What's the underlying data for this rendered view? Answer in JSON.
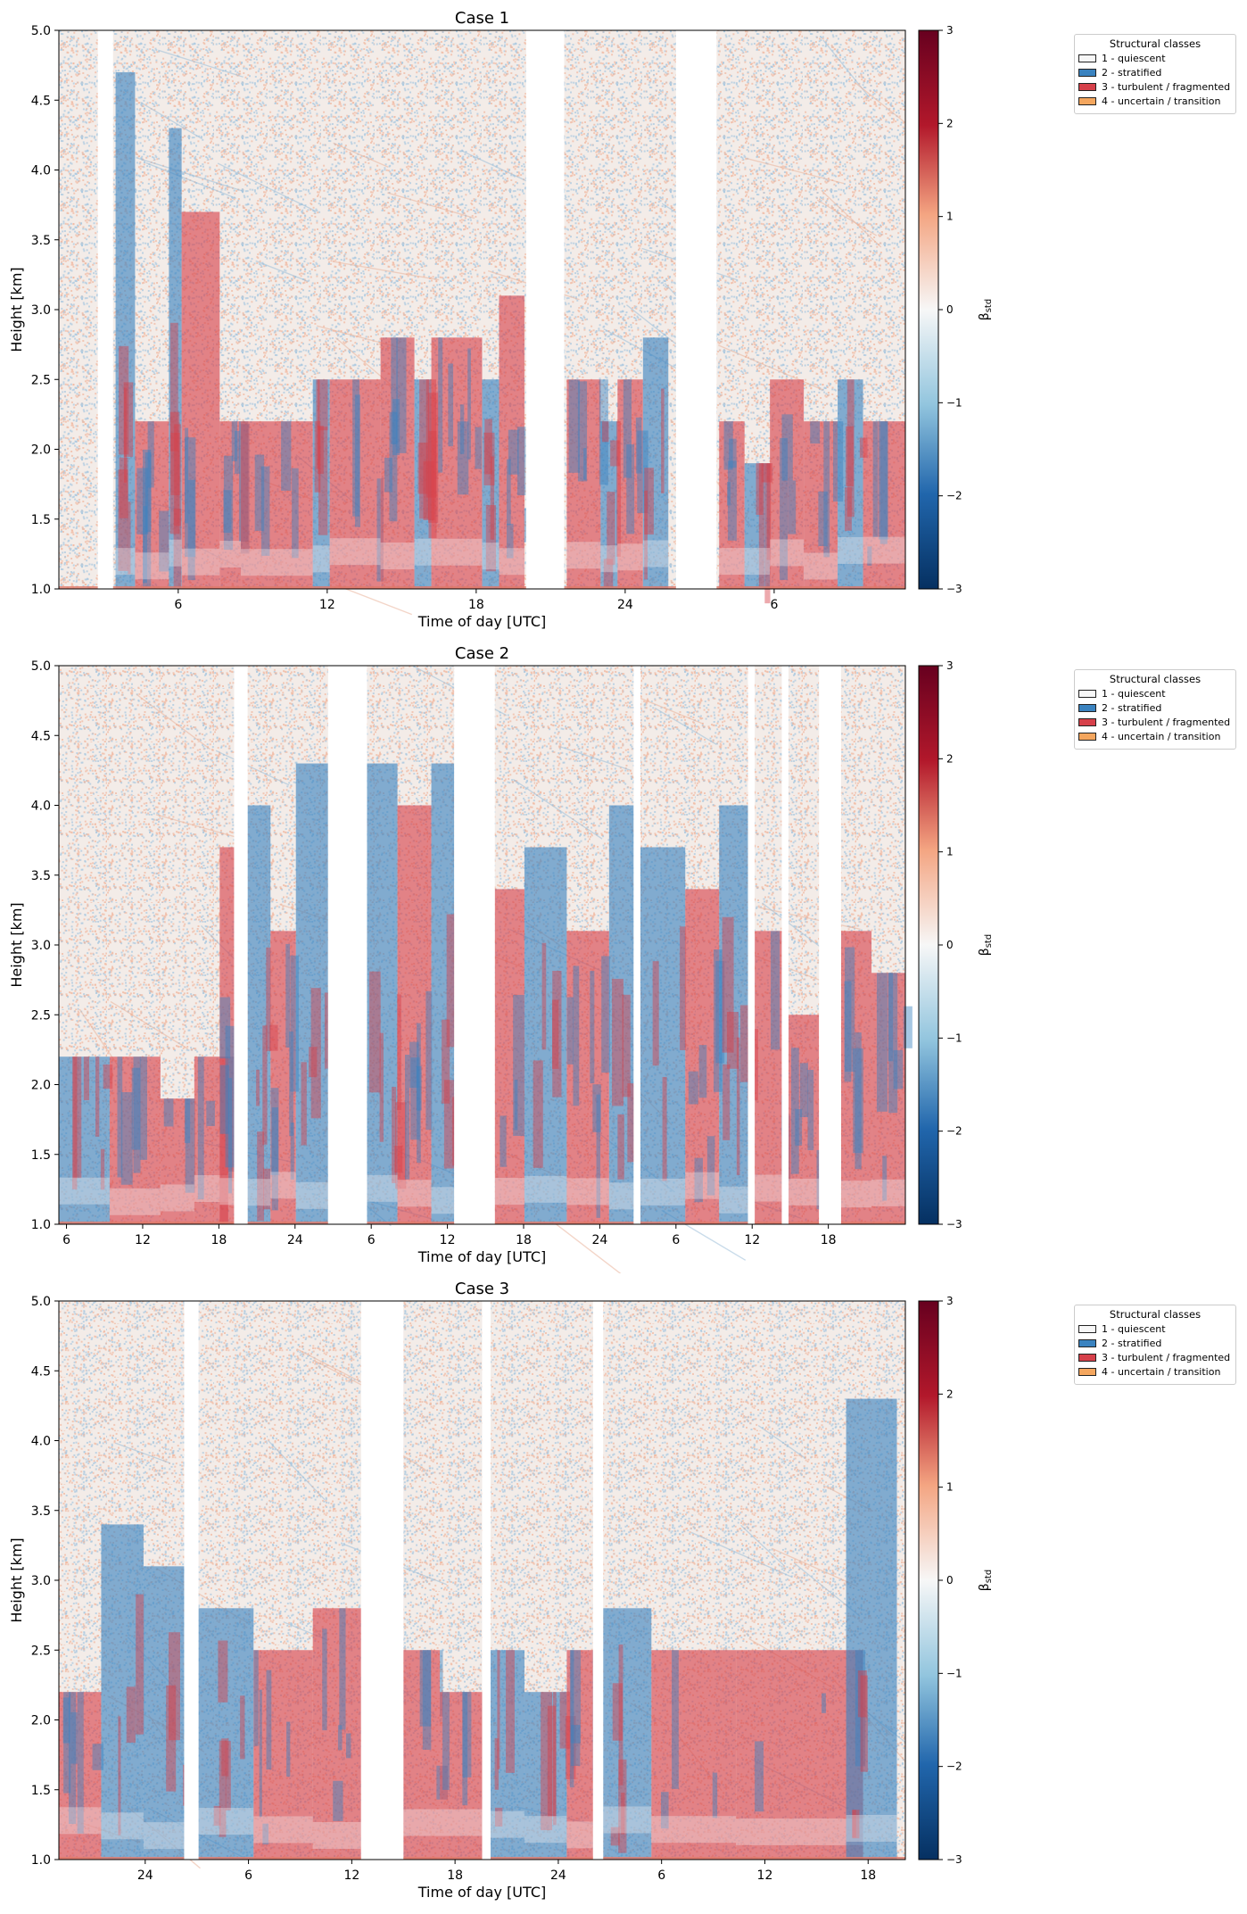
{
  "chart_data": [
    {
      "type": "heatmap",
      "title": "Case 1",
      "xlabel": "Time of day [UTC]",
      "ylabel": "Height [km]",
      "ylim": [
        1.0,
        5.0
      ],
      "y_ticks": [
        "1.0",
        "1.5",
        "2.0",
        "2.5",
        "3.0",
        "3.5",
        "4.0",
        "4.5",
        "5.0"
      ],
      "x_ticks": [
        "6",
        "12",
        "18",
        "24",
        "6"
      ],
      "x_tick_fracs": [
        0.141,
        0.317,
        0.493,
        0.669,
        0.845
      ],
      "colorbar_label": "β_std",
      "colorbar_ticks": [
        "−3",
        "−2",
        "−1",
        "0",
        "1",
        "2",
        "3"
      ],
      "colorbar_range": [
        -3,
        3
      ],
      "gaps": [
        [
          0.046,
          0.064
        ],
        [
          0.552,
          0.597
        ],
        [
          0.729,
          0.777
        ]
      ],
      "classes": [
        {
          "start": 0.067,
          "end": 0.09,
          "class": 2,
          "top": 4.7
        },
        {
          "start": 0.09,
          "end": 0.13,
          "class": 3,
          "top": 2.2
        },
        {
          "start": 0.13,
          "end": 0.145,
          "class": 2,
          "top": 4.3
        },
        {
          "start": 0.145,
          "end": 0.19,
          "class": 3,
          "top": 3.7
        },
        {
          "start": 0.19,
          "end": 0.215,
          "class": 3,
          "top": 2.2
        },
        {
          "start": 0.215,
          "end": 0.3,
          "class": 3,
          "top": 2.2
        },
        {
          "start": 0.3,
          "end": 0.32,
          "class": 2,
          "top": 2.5
        },
        {
          "start": 0.32,
          "end": 0.38,
          "class": 3,
          "top": 2.5
        },
        {
          "start": 0.38,
          "end": 0.42,
          "class": 3,
          "top": 2.8
        },
        {
          "start": 0.42,
          "end": 0.44,
          "class": 2,
          "top": 2.5
        },
        {
          "start": 0.44,
          "end": 0.5,
          "class": 3,
          "top": 2.8
        },
        {
          "start": 0.5,
          "end": 0.52,
          "class": 2,
          "top": 2.5
        },
        {
          "start": 0.52,
          "end": 0.55,
          "class": 3,
          "top": 3.1
        },
        {
          "start": 0.6,
          "end": 0.64,
          "class": 3,
          "top": 2.5
        },
        {
          "start": 0.64,
          "end": 0.66,
          "class": 2,
          "top": 2.2
        },
        {
          "start": 0.66,
          "end": 0.69,
          "class": 3,
          "top": 2.5
        },
        {
          "start": 0.69,
          "end": 0.72,
          "class": 2,
          "top": 2.8
        },
        {
          "start": 0.78,
          "end": 0.81,
          "class": 3,
          "top": 2.2
        },
        {
          "start": 0.81,
          "end": 0.84,
          "class": 2,
          "top": 1.9
        },
        {
          "start": 0.84,
          "end": 0.88,
          "class": 3,
          "top": 2.5
        },
        {
          "start": 0.88,
          "end": 0.92,
          "class": 3,
          "top": 2.2
        },
        {
          "start": 0.92,
          "end": 0.95,
          "class": 2,
          "top": 2.5
        },
        {
          "start": 0.95,
          "end": 1.0,
          "class": 3,
          "top": 2.2
        }
      ]
    },
    {
      "type": "heatmap",
      "title": "Case 2",
      "xlabel": "Time of day [UTC]",
      "ylabel": "Height [km]",
      "ylim": [
        1.0,
        5.0
      ],
      "y_ticks": [
        "1.0",
        "1.5",
        "2.0",
        "2.5",
        "3.0",
        "3.5",
        "4.0",
        "4.5",
        "5.0"
      ],
      "x_ticks": [
        "6",
        "12",
        "18",
        "24",
        "6",
        "12",
        "18",
        "24",
        "6",
        "12",
        "18"
      ],
      "x_tick_fracs": [
        0.009,
        0.099,
        0.189,
        0.279,
        0.369,
        0.459,
        0.549,
        0.639,
        0.729,
        0.819,
        0.909
      ],
      "colorbar_label": "β_std",
      "colorbar_ticks": [
        "−3",
        "−2",
        "−1",
        "0",
        "1",
        "2",
        "3"
      ],
      "colorbar_range": [
        -3,
        3
      ],
      "gaps": [
        [
          0.207,
          0.223
        ],
        [
          0.318,
          0.364
        ],
        [
          0.467,
          0.515
        ],
        [
          0.679,
          0.687
        ],
        [
          0.814,
          0.822
        ],
        [
          0.854,
          0.862
        ],
        [
          0.898,
          0.924
        ]
      ],
      "classes": [
        {
          "start": 0.0,
          "end": 0.06,
          "class": 2,
          "top": 2.2
        },
        {
          "start": 0.06,
          "end": 0.12,
          "class": 3,
          "top": 2.2
        },
        {
          "start": 0.12,
          "end": 0.16,
          "class": 3,
          "top": 1.9
        },
        {
          "start": 0.16,
          "end": 0.2,
          "class": 3,
          "top": 2.2
        },
        {
          "start": 0.19,
          "end": 0.207,
          "class": 3,
          "top": 3.7
        },
        {
          "start": 0.223,
          "end": 0.25,
          "class": 2,
          "top": 4.0
        },
        {
          "start": 0.25,
          "end": 0.28,
          "class": 3,
          "top": 3.1
        },
        {
          "start": 0.28,
          "end": 0.318,
          "class": 2,
          "top": 4.3
        },
        {
          "start": 0.364,
          "end": 0.4,
          "class": 2,
          "top": 4.3
        },
        {
          "start": 0.4,
          "end": 0.44,
          "class": 3,
          "top": 4.0
        },
        {
          "start": 0.44,
          "end": 0.467,
          "class": 2,
          "top": 4.3
        },
        {
          "start": 0.515,
          "end": 0.55,
          "class": 3,
          "top": 3.4
        },
        {
          "start": 0.55,
          "end": 0.6,
          "class": 2,
          "top": 3.7
        },
        {
          "start": 0.6,
          "end": 0.65,
          "class": 3,
          "top": 3.1
        },
        {
          "start": 0.65,
          "end": 0.679,
          "class": 2,
          "top": 4.0
        },
        {
          "start": 0.687,
          "end": 0.74,
          "class": 2,
          "top": 3.7
        },
        {
          "start": 0.74,
          "end": 0.78,
          "class": 3,
          "top": 3.4
        },
        {
          "start": 0.78,
          "end": 0.814,
          "class": 2,
          "top": 4.0
        },
        {
          "start": 0.822,
          "end": 0.854,
          "class": 3,
          "top": 3.1
        },
        {
          "start": 0.862,
          "end": 0.898,
          "class": 3,
          "top": 2.5
        },
        {
          "start": 0.924,
          "end": 0.96,
          "class": 3,
          "top": 3.1
        },
        {
          "start": 0.96,
          "end": 1.0,
          "class": 3,
          "top": 2.8
        }
      ]
    },
    {
      "type": "heatmap",
      "title": "Case 3",
      "xlabel": "Time of day [UTC]",
      "ylabel": "Height [km]",
      "ylim": [
        1.0,
        5.0
      ],
      "y_ticks": [
        "1.0",
        "1.5",
        "2.0",
        "2.5",
        "3.0",
        "3.5",
        "4.0",
        "4.5",
        "5.0"
      ],
      "x_ticks": [
        "24",
        "6",
        "12",
        "18",
        "24",
        "6",
        "12",
        "18"
      ],
      "x_tick_fracs": [
        0.102,
        0.224,
        0.346,
        0.468,
        0.59,
        0.712,
        0.834,
        0.956
      ],
      "colorbar_label": "β_std",
      "colorbar_ticks": [
        "−3",
        "−2",
        "−1",
        "0",
        "1",
        "2",
        "3"
      ],
      "colorbar_range": [
        -3,
        3
      ],
      "gaps": [
        [
          0.148,
          0.165
        ],
        [
          0.357,
          0.407
        ],
        [
          0.5,
          0.51
        ],
        [
          0.631,
          0.643
        ]
      ],
      "classes": [
        {
          "start": 0.0,
          "end": 0.05,
          "class": 3,
          "top": 2.2
        },
        {
          "start": 0.05,
          "end": 0.1,
          "class": 2,
          "top": 3.4
        },
        {
          "start": 0.1,
          "end": 0.148,
          "class": 2,
          "top": 3.1
        },
        {
          "start": 0.165,
          "end": 0.23,
          "class": 2,
          "top": 2.8
        },
        {
          "start": 0.23,
          "end": 0.3,
          "class": 3,
          "top": 2.5
        },
        {
          "start": 0.3,
          "end": 0.357,
          "class": 3,
          "top": 2.8
        },
        {
          "start": 0.407,
          "end": 0.45,
          "class": 3,
          "top": 2.5
        },
        {
          "start": 0.45,
          "end": 0.5,
          "class": 3,
          "top": 2.2
        },
        {
          "start": 0.51,
          "end": 0.55,
          "class": 2,
          "top": 2.5
        },
        {
          "start": 0.55,
          "end": 0.6,
          "class": 2,
          "top": 2.2
        },
        {
          "start": 0.6,
          "end": 0.631,
          "class": 3,
          "top": 2.5
        },
        {
          "start": 0.643,
          "end": 0.7,
          "class": 2,
          "top": 2.8
        },
        {
          "start": 0.7,
          "end": 0.8,
          "class": 3,
          "top": 2.5
        },
        {
          "start": 0.8,
          "end": 0.95,
          "class": 3,
          "top": 2.5
        },
        {
          "start": 0.93,
          "end": 0.99,
          "class": 2,
          "top": 4.3
        }
      ]
    }
  ],
  "legend": {
    "title": "Structural classes",
    "items": [
      {
        "label": "1 - quiescent",
        "color": "#f7f7f7"
      },
      {
        "label": "2 - stratified",
        "color": "#3a83c0"
      },
      {
        "label": "3 - turbulent / fragmented",
        "color": "#d6404a"
      },
      {
        "label": "4 - uncertain / transition",
        "color": "#f4a65e"
      }
    ]
  },
  "colors": {
    "class_1": "#f7f7f7",
    "class_2": "#3a83c0",
    "class_3": "#d6404a",
    "class_4": "#f4a65e"
  }
}
